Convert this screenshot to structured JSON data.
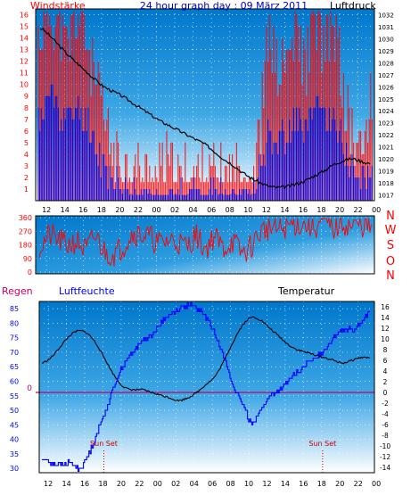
{
  "colors": {
    "wind": "#ff0000",
    "gust_fill": "#ff0000",
    "wind_fill": "#0000dd",
    "pressure": "#000000",
    "direction": "#ff0000",
    "humidity": "#0000ff",
    "temperature": "#000000",
    "rain": "#cc0066",
    "title": "#0000cc",
    "bg_top": "#0077cc",
    "bg_bottom": "#ffffff"
  },
  "chart_data": [
    {
      "type": "bar",
      "panel": "wind_pressure",
      "title": "24 hour graph day : 09 März 2011",
      "left_label": "Windstärke",
      "right_label": "Luftdruck",
      "left_ticks": [
        "1",
        "2",
        "3",
        "4",
        "5",
        "6",
        "7",
        "8",
        "9",
        "10",
        "11",
        "12",
        "13",
        "14",
        "15",
        "16"
      ],
      "right_ticks": [
        "1017",
        "1018",
        "1019",
        "1020",
        "1021",
        "1022",
        "1023",
        "1024",
        "1025",
        "1026",
        "1027",
        "1028",
        "1029",
        "1030",
        "1031",
        "1032"
      ],
      "x_ticks": [
        "12",
        "14",
        "16",
        "18",
        "20",
        "22",
        "00",
        "02",
        "04",
        "06",
        "08",
        "10",
        "12",
        "14",
        "16",
        "18",
        "20",
        "22",
        "00"
      ],
      "ylim_left": [
        0,
        16.5
      ],
      "ylim_right": [
        1016.5,
        1032.5
      ],
      "hours": [
        0,
        1,
        2,
        3,
        4,
        5,
        6,
        7,
        8,
        9,
        10,
        11,
        12,
        13,
        14,
        15,
        16,
        17,
        18,
        19,
        20,
        21,
        22,
        23,
        24,
        25,
        26,
        27,
        28,
        29,
        30,
        31,
        32,
        33,
        34,
        35,
        36
      ],
      "series": [
        {
          "name": "Luftdruck",
          "values": [
            1030.9,
            1030.3,
            1029.5,
            1028.7,
            1028.0,
            1027.3,
            1026.6,
            1026.0,
            1025.6,
            1025.2,
            1024.7,
            1024.2,
            1023.7,
            1023.2,
            1022.8,
            1022.4,
            1022.0,
            1021.6,
            1021.2,
            1020.6,
            1020.0,
            1019.5,
            1018.9,
            1018.4,
            1018.0,
            1017.7,
            1017.6,
            1017.7,
            1017.9,
            1018.2,
            1018.6,
            1019.0,
            1019.5,
            1019.8,
            1020.0,
            1019.8,
            1019.6
          ]
        },
        {
          "name": "Böen",
          "values": [
            14,
            16,
            15,
            13,
            16,
            14,
            10,
            7,
            4,
            3,
            3,
            2,
            2,
            2,
            3,
            2,
            2,
            2,
            2,
            2,
            2,
            2,
            3,
            2,
            6,
            14,
            11,
            12,
            14,
            12,
            16,
            13,
            15,
            10,
            6,
            4,
            8
          ]
        },
        {
          "name": "Wind",
          "values": [
            7,
            9,
            8,
            7,
            8,
            7,
            5,
            3,
            2,
            1,
            1,
            0,
            1,
            0,
            1,
            0,
            1,
            1,
            0,
            1,
            1,
            1,
            1,
            1,
            3,
            6,
            5,
            6,
            7,
            6,
            8,
            7,
            7,
            5,
            3,
            2,
            3
          ]
        }
      ]
    },
    {
      "type": "line",
      "panel": "direction",
      "left_ticks": [
        "0",
        "90",
        "180",
        "270",
        "360"
      ],
      "right_letters": [
        "N",
        "W",
        "S",
        "O",
        "N"
      ],
      "ylim": [
        0,
        360
      ],
      "hours": [
        0,
        1,
        2,
        3,
        4,
        5,
        6,
        7,
        8,
        9,
        10,
        11,
        12,
        13,
        14,
        15,
        16,
        17,
        18,
        19,
        20,
        21,
        22,
        23,
        24,
        25,
        26,
        27,
        28,
        29,
        30,
        31,
        32,
        33,
        34,
        35,
        36
      ],
      "series": [
        {
          "name": "Windrichtung",
          "values": [
            170,
            240,
            210,
            180,
            200,
            150,
            230,
            140,
            120,
            170,
            250,
            250,
            230,
            190,
            210,
            200,
            170,
            240,
            160,
            230,
            160,
            200,
            130,
            170,
            260,
            290,
            280,
            300,
            320,
            310,
            300,
            330,
            290,
            320,
            300,
            310,
            290
          ]
        }
      ]
    },
    {
      "type": "line",
      "panel": "temp_humidity",
      "left_label": "Regen",
      "center_label": "Luftfeuchte",
      "right_label": "Temperatur",
      "rain_value_label": "0",
      "left_ticks": [
        "30",
        "35",
        "40",
        "45",
        "50",
        "55",
        "60",
        "65",
        "70",
        "75",
        "80",
        "85"
      ],
      "right_ticks": [
        "-14",
        "-12",
        "-10",
        "-8",
        "-6",
        "-4",
        "-2",
        "0",
        "2",
        "4",
        "6",
        "8",
        "10",
        "12",
        "14",
        "16"
      ],
      "x_ticks": [
        "12",
        "14",
        "16",
        "18",
        "20",
        "22",
        "00",
        "02",
        "04",
        "06",
        "08",
        "10",
        "12",
        "14",
        "16",
        "18",
        "20",
        "22",
        "00"
      ],
      "ylim_left": [
        28.5,
        87.5
      ],
      "ylim_right": [
        -15,
        17
      ],
      "annotations": [
        "Sun Set",
        "Sun Set"
      ],
      "sunset_hours": [
        6.8,
        30.8
      ],
      "hours": [
        0,
        1,
        2,
        3,
        4,
        5,
        6,
        7,
        8,
        9,
        10,
        11,
        12,
        13,
        14,
        15,
        16,
        17,
        18,
        19,
        20,
        21,
        22,
        23,
        24,
        25,
        26,
        27,
        28,
        29,
        30,
        31,
        32,
        33,
        34,
        35,
        36
      ],
      "series": [
        {
          "name": "Temperatur",
          "values": [
            5.5,
            6.5,
            8.5,
            10.5,
            11.5,
            11.0,
            9.0,
            6.0,
            3.0,
            1.0,
            0.5,
            0.5,
            0.0,
            -0.5,
            -1.0,
            -1.5,
            -1.0,
            0.0,
            1.5,
            3.0,
            6.0,
            9.5,
            12.5,
            14.0,
            13.5,
            12.0,
            10.5,
            9.0,
            8.0,
            7.5,
            7.0,
            6.5,
            6.0,
            5.5,
            6.0,
            6.5,
            6.5
          ]
        },
        {
          "name": "Luftfeuchte",
          "values": [
            33,
            32,
            31,
            32,
            30,
            34,
            42,
            50,
            59,
            66,
            70,
            74,
            76,
            80,
            83,
            85,
            86,
            85,
            82,
            76,
            68,
            58,
            52,
            46,
            50,
            55,
            57,
            60,
            63,
            66,
            68,
            71,
            75,
            78,
            78,
            80,
            84
          ]
        },
        {
          "name": "Regen",
          "values": [
            0,
            0,
            0,
            0,
            0,
            0,
            0,
            0,
            0,
            0,
            0,
            0,
            0,
            0,
            0,
            0,
            0,
            0,
            0,
            0,
            0,
            0,
            0,
            0,
            0,
            0,
            0,
            0,
            0,
            0,
            0,
            0,
            0,
            0,
            0,
            0,
            0
          ]
        }
      ]
    }
  ]
}
